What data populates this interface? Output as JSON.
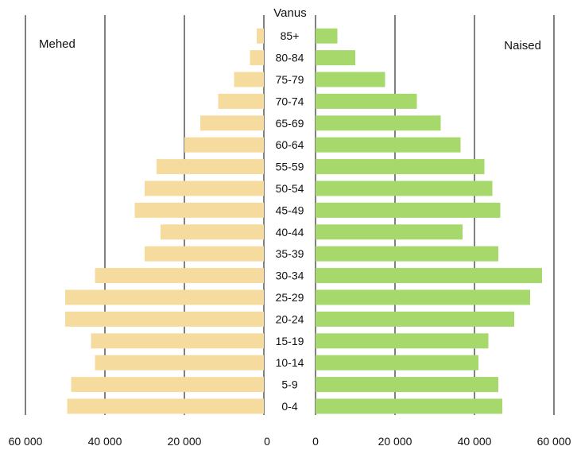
{
  "chart_data": {
    "type": "bar",
    "orientation": "horizontal-pyramid",
    "title": "",
    "center_label": "Vanus",
    "categories": [
      "0-4",
      "5-9",
      "10-14",
      "15-19",
      "20-24",
      "25-29",
      "30-34",
      "35-39",
      "40-44",
      "45-49",
      "50-54",
      "55-59",
      "60-64",
      "65-69",
      "70-74",
      "75-79",
      "80-84",
      "85+"
    ],
    "series": [
      {
        "name": "Mehed",
        "color": "#f5dc9e",
        "values": [
          49500,
          48500,
          42500,
          43500,
          50000,
          50000,
          42500,
          30000,
          26000,
          32500,
          30000,
          27000,
          20000,
          16000,
          11500,
          7500,
          3500,
          1800
        ]
      },
      {
        "name": "Naised",
        "color": "#a6d86b",
        "values": [
          47000,
          46000,
          41000,
          43500,
          50000,
          54000,
          57000,
          46000,
          37000,
          46500,
          44500,
          42500,
          36500,
          31500,
          25500,
          17500,
          10000,
          5500
        ]
      }
    ],
    "left_axis": {
      "ticks": [
        "60 000",
        "40 000",
        "20 000",
        "0"
      ],
      "tick_values": [
        60000,
        40000,
        20000,
        0
      ],
      "range": [
        0,
        60000
      ]
    },
    "right_axis": {
      "ticks": [
        "0",
        "20 000",
        "40 000",
        "60 000"
      ],
      "tick_values": [
        0,
        20000,
        40000,
        60000
      ],
      "range": [
        0,
        60000
      ]
    },
    "grid": true
  }
}
